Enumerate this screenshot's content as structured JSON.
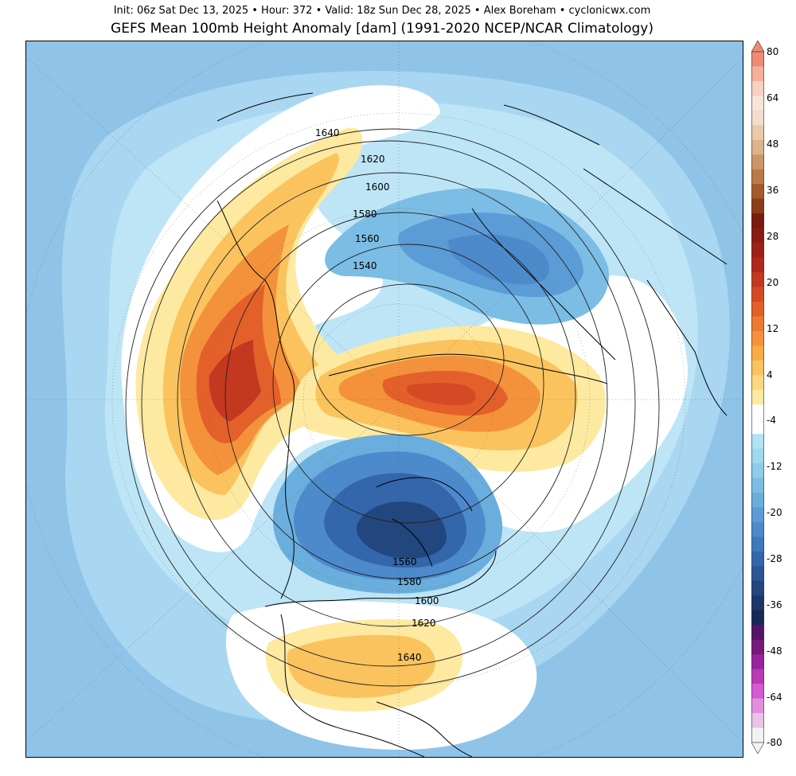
{
  "header": {
    "subtitle": "Init: 06z Sat Dec 13, 2025 • Hour: 372 • Valid: 18z Sun Dec 28, 2025 • Alex Boreham • cyclonicwx.com",
    "title": "GEFS Mean 100mb Height Anomaly [dam] (1991-2020 NCEP/NCAR Climatology)"
  },
  "map": {
    "projection": "north-polar-stereographic",
    "field": "100mb height anomaly",
    "units": "dam",
    "contour_labels_upper": [
      "1640",
      "1620",
      "1600",
      "1580",
      "1560",
      "1540"
    ],
    "contour_labels_lower": [
      "1560",
      "1580",
      "1600",
      "1620",
      "1640"
    ],
    "features": [
      "positive-anomaly-pacific-alaska",
      "positive-anomaly-siberia-arctic",
      "positive-anomaly-southern-us",
      "negative-anomaly-canada",
      "negative-anomaly-scandinavia-russia"
    ]
  },
  "colorbar": {
    "labels": [
      "80",
      "64",
      "48",
      "36",
      "28",
      "20",
      "12",
      "4",
      "-4",
      "-12",
      "-20",
      "-28",
      "-36",
      "-48",
      "-64",
      "-80"
    ],
    "colors": [
      "#f2f2f2",
      "#e9c4e6",
      "#e08fdd",
      "#d35ad0",
      "#b83bb5",
      "#99239a",
      "#761a7c",
      "#551466",
      "#162a55",
      "#1b3668",
      "#22467e",
      "#2b5695",
      "#3366aa",
      "#3f78bd",
      "#4c8acb",
      "#5b9cd6",
      "#6aaede",
      "#7bbde4",
      "#8ccbea",
      "#9ed8ef",
      "#b1e3f4",
      "#ffffff",
      "#ffffff",
      "#fde9a0",
      "#fdd77d",
      "#fbc35e",
      "#f8ab47",
      "#f4923b",
      "#ee7a31",
      "#e4602a",
      "#d54a25",
      "#c43820",
      "#b0281c",
      "#9d2118",
      "#8a1c14",
      "#7a1a10",
      "#8d3c1a",
      "#a45a2a",
      "#ba7a45",
      "#cc9766",
      "#dcb38b",
      "#e8caa9",
      "#f2dccb",
      "#f7e5d9",
      "#f8d0c0",
      "#f5b09a",
      "#ef8a76"
    ]
  }
}
